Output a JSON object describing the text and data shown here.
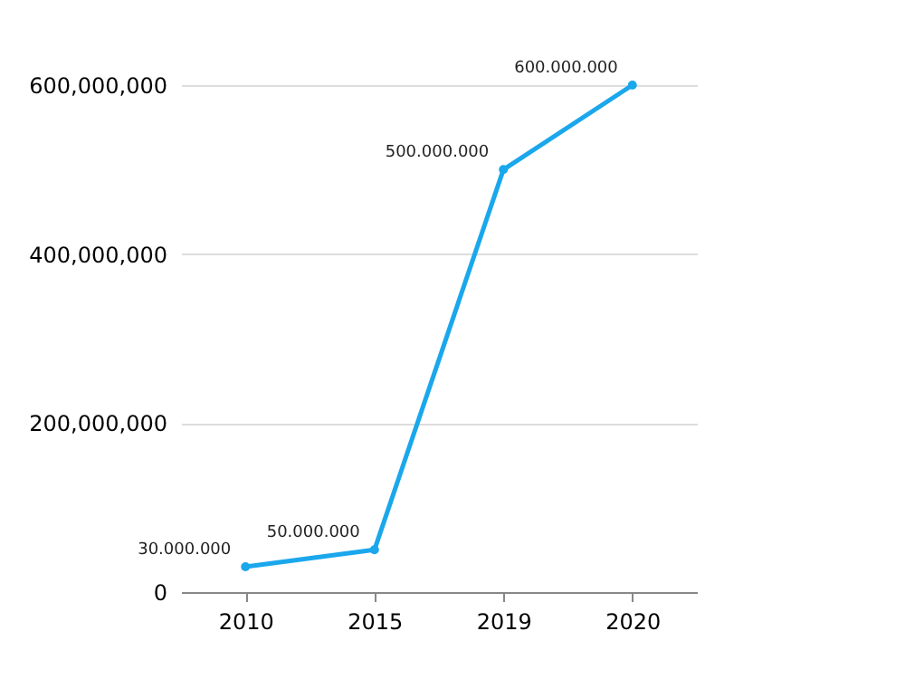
{
  "chart_data": {
    "type": "line",
    "categories": [
      "2010",
      "2015",
      "2019",
      "2020"
    ],
    "series": [
      {
        "color": "#1aa7ec",
        "values": [
          30000000,
          50000000,
          500000000,
          600000000
        ],
        "value_labels": [
          "30.000.000",
          "50.000.000",
          "500.000.000",
          "600.000.000"
        ]
      }
    ],
    "ylim": [
      0,
      600000000
    ],
    "yticks": [
      {
        "value": 0,
        "label": "0"
      },
      {
        "value": 200000000,
        "label": "200,000,000"
      },
      {
        "value": 400000000,
        "label": "400,000,000"
      },
      {
        "value": 600000000,
        "label": "600,000,000"
      }
    ],
    "grid": "y",
    "marker": "circle",
    "line_style": "solid"
  }
}
